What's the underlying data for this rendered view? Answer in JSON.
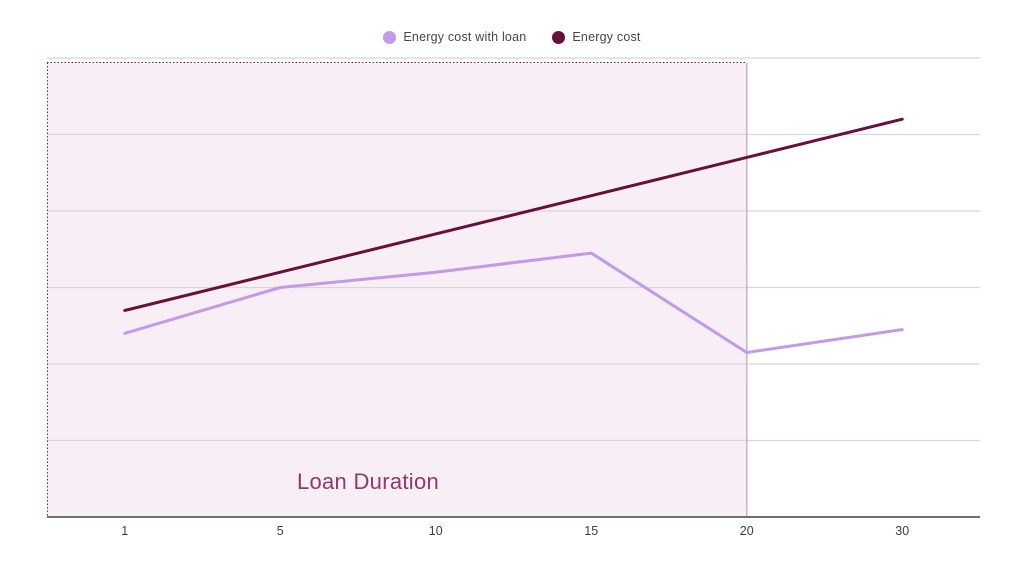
{
  "chart_data": {
    "type": "line",
    "title": "",
    "xlabel": "",
    "ylabel": "",
    "categories": [
      "1",
      "5",
      "10",
      "15",
      "20",
      "30"
    ],
    "series": [
      {
        "name": "Energy cost with loan",
        "color": "#c19ae9",
        "values": [
          2.4,
          3.0,
          3.2,
          3.45,
          2.15,
          2.45
        ]
      },
      {
        "name": "Energy cost",
        "color": "#67103c",
        "values": [
          2.7,
          3.2,
          3.7,
          4.2,
          4.7,
          5.2
        ]
      }
    ],
    "ylim": [
      0,
      6
    ],
    "y_axis_labels": "hidden",
    "grid": "horizontal",
    "gridline_count": 7,
    "legend_position": "top-center",
    "annotation_region": {
      "label": "Loan Duration",
      "from": "axis-start",
      "to_category": "20",
      "fill": "#f7eff5",
      "border_style": "dotted",
      "border_color": "#8d1b40",
      "right_border_color": "#c3a8bc",
      "label_color": "#8e3a6e"
    },
    "colors": {
      "background": "#ffffff",
      "gridline": "#d8d8d8",
      "axis": "#6f6f6f",
      "tick_text": "#3c4043",
      "legend_text": "#44474a"
    }
  }
}
